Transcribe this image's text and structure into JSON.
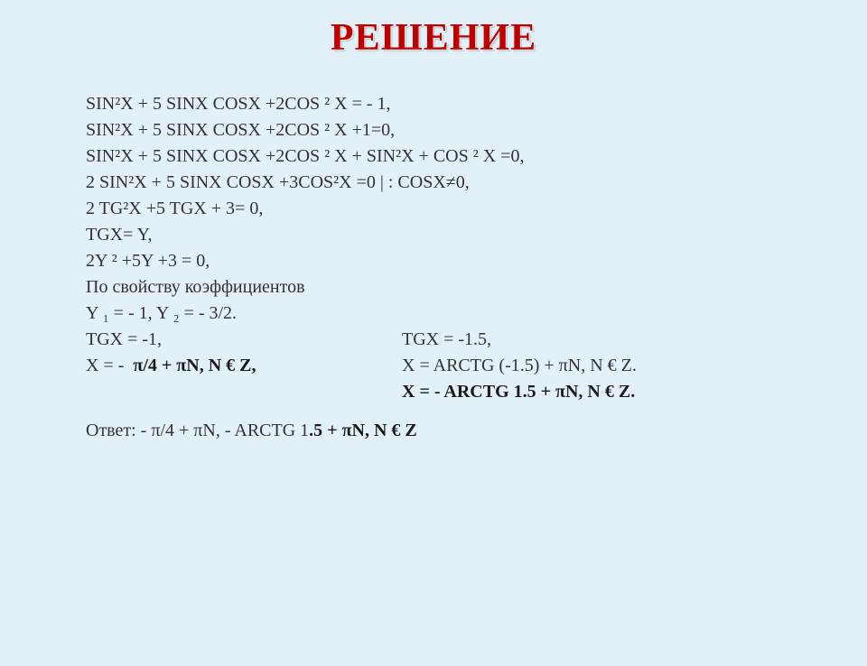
{
  "title": {
    "text": "РЕШЕНИЕ",
    "fontsize": 42,
    "color": "#c00000"
  },
  "content": {
    "fontsize": 20,
    "text_color": "#323232",
    "bold_color": "#1a1a1a",
    "lines": {
      "l1": "SIN²X + 5 SINX COSX +2COS ² X  = - 1,",
      "l2": "SIN²X + 5 SINX COSX +2COS ² X +1=0,",
      "l3": " SIN²X + 5 SINX COSX +2COS ² X +  SIN²X + COS ² X =0,",
      "l4": "2 SIN²X + 5 SINX COSX +3COS²X =0   | :  COSX≠0,",
      "l5": "2 TG²X +5 TGX + 3= 0,",
      "l6": "TGX= Y,",
      "l7": "2Y ²  +5Y +3 = 0,",
      "l8": "По свойству коэффициентов",
      "l9": "Y ₁ = - 1, Y ₂ = -  3/2.",
      "l10a": "TGX = -1,",
      "l10b": "TGX = -1.5,",
      "l11a": "X = -  π/4 + πN,  N € Z,",
      "l11b": "X = ARCTG (-1.5) + πN,  N € Z.",
      "l12b": "X =  - ARCTG 1.5 + πN,  N € Z.",
      "l13_prefix": "Ответ: - π/4 + πN,  - ARCTG 1",
      "l13_bold": ".5 + πN,  N € Z"
    }
  },
  "background_color": "#e2f1f8"
}
